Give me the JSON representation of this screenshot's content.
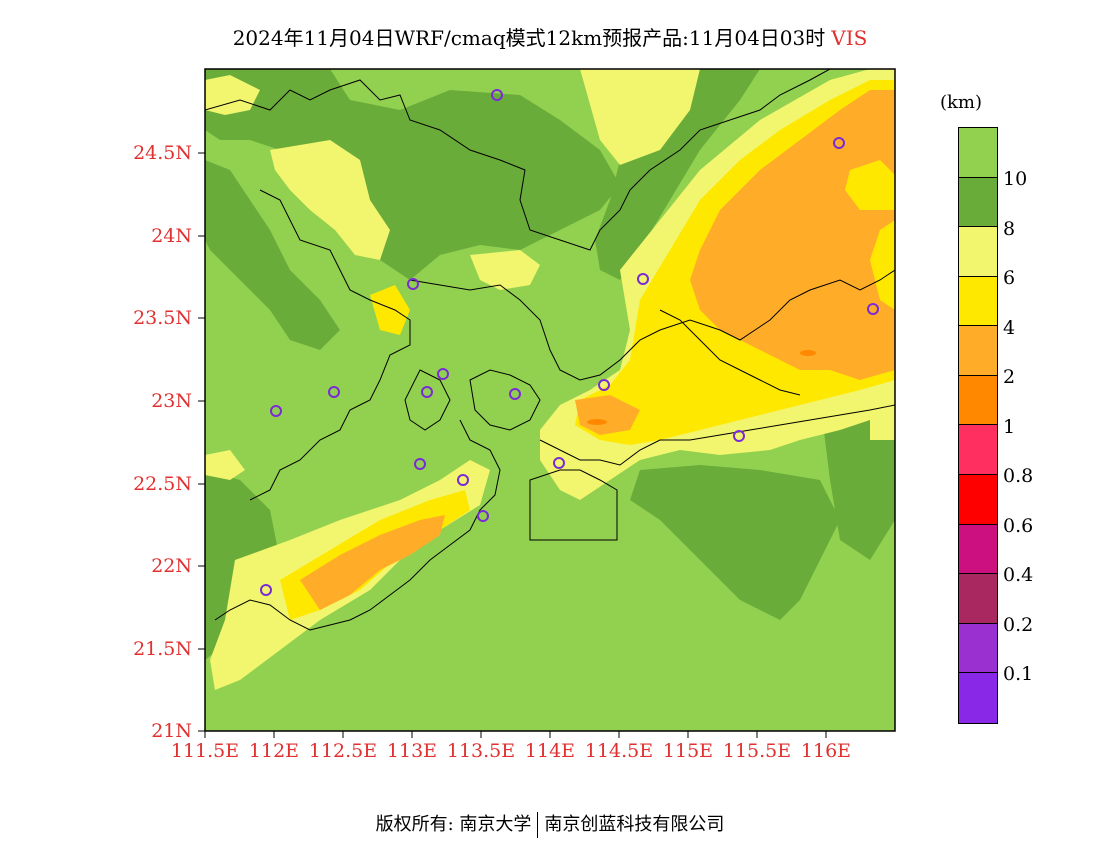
{
  "title": {
    "main": "2024年11月04日WRF/cmaq模式12km预报产品:11月04日03时",
    "variable": "VIS"
  },
  "axes": {
    "lat_labels": [
      "24.5N",
      "24N",
      "23.5N",
      "23N",
      "22.5N",
      "22N",
      "21.5N",
      "21N"
    ],
    "lon_labels": [
      "111.5E",
      "112E",
      "112.5E",
      "113E",
      "113.5E",
      "114E",
      "114.5E",
      "115E",
      "115.5E",
      "116E"
    ]
  },
  "legend": {
    "unit": "(km)",
    "colors": [
      "#92d050",
      "#6aac3a",
      "#f2f56e",
      "#ffe800",
      "#ffad29",
      "#ff8800",
      "#ff3060",
      "#ff0000",
      "#cc1080",
      "#aa2860",
      "#9a30d0",
      "#8a28e8"
    ],
    "labels": [
      "10",
      "8",
      "6",
      "4",
      "2",
      "1",
      "0.8",
      "0.6",
      "0.4",
      "0.2",
      "0.1"
    ]
  },
  "map": {
    "visibility_classes_km": [
      "≥10",
      "8-10",
      "6-8",
      "4-6",
      "2-4",
      "1-2"
    ],
    "station_marker_color": "#7a2bd6"
  },
  "footer": {
    "left": "版权所有: 南京大学",
    "right": "南京创蓝科技有限公司"
  }
}
